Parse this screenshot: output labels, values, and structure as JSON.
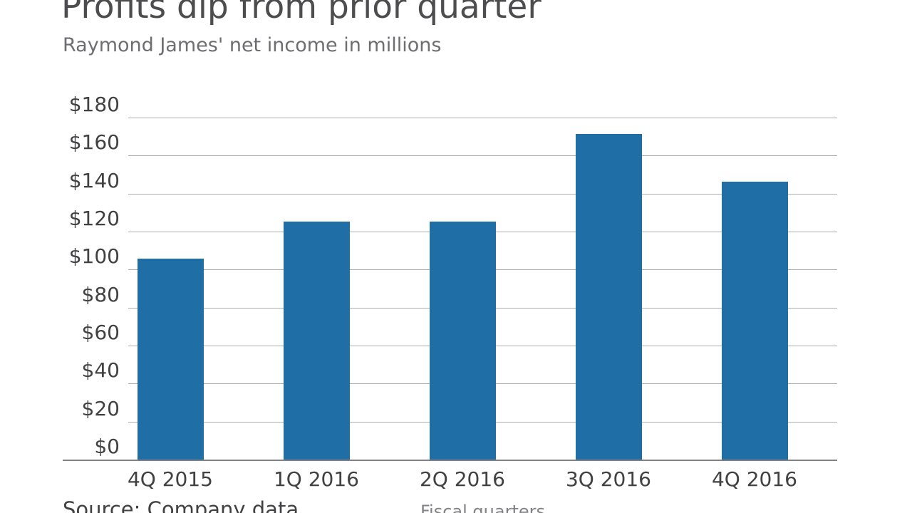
{
  "header": {
    "title": "Profits dip from prior quarter",
    "subtitle": "Raymond James' net income in millions"
  },
  "chart_data": {
    "type": "bar",
    "title": "Profits dip from prior quarter",
    "subtitle": "Raymond James' net income in millions",
    "categories": [
      "4Q 2015",
      "1Q 2016",
      "2Q 2016",
      "3Q 2016",
      "4Q 2016"
    ],
    "values": [
      106.3,
      125.8,
      125.5,
      171.7,
      146.6
    ],
    "xlabel": "Fiscal quarters",
    "ylabel": "",
    "ylim": [
      0,
      180
    ],
    "ytick_step": 20,
    "ytick_labels": [
      "$0",
      "$20",
      "$40",
      "$60",
      "$80",
      "$100",
      "$120",
      "$140",
      "$160",
      "$180"
    ],
    "grid": true,
    "legend": "none",
    "bar_color": "#1f6ea6"
  },
  "footer": {
    "source": "Source: Company data"
  },
  "colors": {
    "title": "#4d4d4f",
    "subtitle": "#6d6e71",
    "axis_text": "#414042",
    "gridline": "#abadb0",
    "axis_line": "#808285",
    "bar": "#1f6ea6",
    "background": "#ffffff"
  }
}
